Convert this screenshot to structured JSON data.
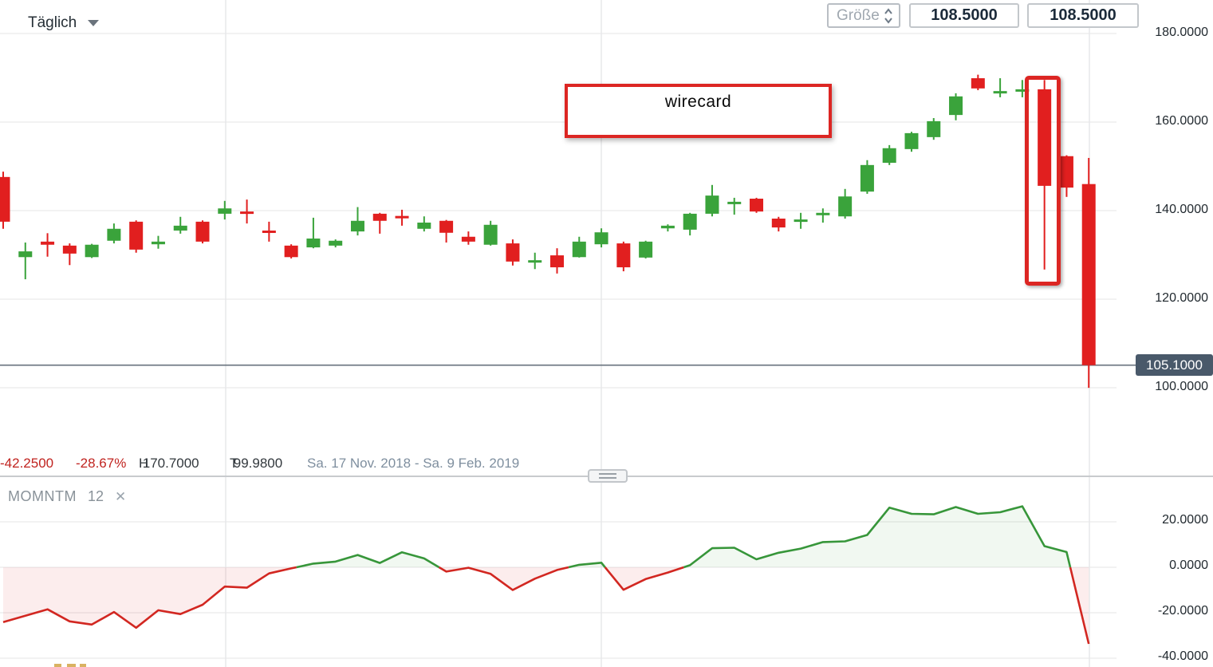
{
  "toolbar": {
    "timeframe_label": "Täglich",
    "size_label": "Größe",
    "price_value_1": "108.5000",
    "price_value_2": "108.5000"
  },
  "annotations": {
    "label_box_text": "wirecard"
  },
  "status_bar": {
    "change_abs": "-42.2500",
    "change_pct": "-28.67%",
    "high_label": "H",
    "high_value": "170.7000",
    "low_label": "T",
    "low_value": "99.9800",
    "date_range": "Sa. 17 Nov. 2018 - Sa. 9 Feb. 2019"
  },
  "indicator": {
    "name": "MOMNTM",
    "period": "12",
    "close_icon": "✕"
  },
  "price_scale": {
    "current_price_label": "105.1000",
    "current_price": 105.1,
    "ticks": [
      {
        "label": "180.0000",
        "value": 180
      },
      {
        "label": "160.0000",
        "value": 160
      },
      {
        "label": "140.0000",
        "value": 140
      },
      {
        "label": "120.0000",
        "value": 120
      },
      {
        "label": "100.0000",
        "value": 100
      }
    ]
  },
  "momentum_scale": {
    "ticks": [
      {
        "label": "20.0000",
        "value": 20
      },
      {
        "label": "0.0000",
        "value": 0
      },
      {
        "label": "-20.0000",
        "value": -20
      },
      {
        "label": "-40.0000",
        "value": -40
      }
    ]
  },
  "colors": {
    "candle_up": "#3aa33b",
    "candle_down": "#e11f1f",
    "grid": "#ededee",
    "vgrid": "#e7e8ea",
    "price_line": "#67727d",
    "badge_bg": "#49596a",
    "momo_up": "#37963a",
    "momo_down": "#d22721",
    "momo_fill_up": "rgba(80,160,80,0.08)",
    "momo_fill_down": "rgba(229,80,80,0.10)"
  },
  "chart_data": [
    {
      "type": "candlestick",
      "title": "wirecard daily candles",
      "ylabel": "price",
      "ylim": [
        96,
        182
      ],
      "period_high": 170.7,
      "period_low": 99.98,
      "current_price": 105.1,
      "candles_ohlc": [
        [
          147.6,
          148.8,
          135.9,
          137.5
        ],
        [
          129.5,
          132.8,
          124.5,
          130.8
        ],
        [
          133.0,
          134.9,
          129.6,
          132.3
        ],
        [
          132.1,
          132.6,
          127.7,
          130.3
        ],
        [
          129.5,
          132.5,
          129.3,
          132.3
        ],
        [
          133.2,
          137.1,
          132.6,
          135.9
        ],
        [
          137.5,
          137.8,
          130.5,
          131.2
        ],
        [
          132.4,
          134.3,
          131.4,
          133.0
        ],
        [
          135.5,
          138.6,
          134.8,
          136.6
        ],
        [
          137.5,
          137.8,
          132.6,
          133.0
        ],
        [
          139.3,
          142.2,
          138.0,
          140.5
        ],
        [
          139.8,
          142.5,
          137.1,
          139.4
        ],
        [
          135.5,
          137.5,
          133.0,
          135.1
        ],
        [
          132.1,
          132.4,
          129.2,
          129.5
        ],
        [
          131.7,
          138.4,
          131.5,
          133.7
        ],
        [
          132.1,
          133.5,
          131.7,
          133.2
        ],
        [
          135.3,
          140.8,
          134.4,
          137.7
        ],
        [
          139.3,
          139.5,
          134.8,
          137.7
        ],
        [
          138.8,
          140.2,
          136.6,
          138.4
        ],
        [
          135.9,
          138.7,
          135.3,
          137.3
        ],
        [
          137.7,
          137.9,
          132.8,
          135.0
        ],
        [
          134.1,
          135.3,
          132.3,
          133.0
        ],
        [
          132.3,
          137.7,
          132.1,
          136.8
        ],
        [
          132.6,
          133.5,
          127.6,
          128.5
        ],
        [
          128.4,
          130.5,
          126.8,
          128.8
        ],
        [
          129.9,
          131.5,
          125.8,
          127.2
        ],
        [
          129.5,
          134.1,
          129.4,
          133.0
        ],
        [
          132.4,
          136.0,
          131.7,
          135.1
        ],
        [
          132.6,
          133.0,
          126.3,
          127.2
        ],
        [
          129.4,
          133.2,
          129.2,
          133.0
        ],
        [
          136.0,
          136.9,
          135.3,
          136.6
        ],
        [
          135.7,
          139.5,
          134.4,
          139.3
        ],
        [
          139.3,
          145.8,
          138.7,
          143.4
        ],
        [
          141.6,
          142.9,
          139.1,
          142.0
        ],
        [
          142.7,
          142.9,
          139.5,
          139.8
        ],
        [
          138.2,
          138.6,
          135.3,
          136.2
        ],
        [
          137.6,
          139.5,
          135.9,
          138.0
        ],
        [
          139.1,
          140.5,
          137.3,
          139.5
        ],
        [
          138.7,
          144.9,
          138.2,
          143.2
        ],
        [
          144.3,
          151.4,
          143.8,
          150.3
        ],
        [
          150.8,
          154.8,
          150.3,
          154.1
        ],
        [
          153.9,
          157.8,
          153.3,
          157.5
        ],
        [
          156.6,
          160.9,
          156.0,
          160.2
        ],
        [
          161.6,
          166.5,
          160.4,
          165.8
        ],
        [
          169.9,
          170.7,
          167.2,
          167.6
        ],
        [
          166.6,
          169.9,
          165.6,
          167.0
        ],
        [
          167.0,
          169.5,
          165.6,
          167.4
        ],
        [
          167.4,
          169.5,
          126.7,
          145.6
        ],
        [
          152.3,
          152.5,
          143.1,
          145.2
        ],
        [
          146.0,
          151.9,
          99.98,
          105.1
        ]
      ]
    },
    {
      "type": "line",
      "title": "MOMNTM 12",
      "ylim": [
        -42,
        30
      ],
      "zero_line": true,
      "values": [
        -24.1,
        -21.3,
        -18.5,
        -23.8,
        -25.2,
        -19.7,
        -26.6,
        -18.9,
        -20.6,
        -16.5,
        -8.5,
        -9.0,
        -2.7,
        -0.5,
        1.6,
        2.5,
        5.4,
        1.9,
        6.6,
        3.9,
        -1.9,
        -0.2,
        -2.9,
        -10.0,
        -5.0,
        -1.2,
        1.1,
        2.0,
        -9.9,
        -5.2,
        -2.3,
        0.9,
        8.4,
        8.6,
        3.5,
        6.4,
        8.2,
        11.1,
        11.4,
        14.2,
        26.2,
        23.5,
        23.3,
        26.5,
        23.5,
        24.2,
        26.8,
        9.3,
        6.7,
        -33.7
      ]
    }
  ]
}
